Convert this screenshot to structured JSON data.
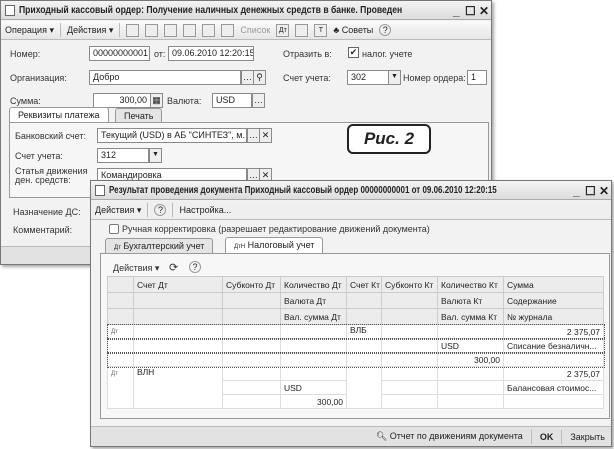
{
  "main": {
    "title": "Приходный кассовый ордер: Получение наличных денежных средств в банке. Проведен",
    "toolbar": {
      "operation": "Операция ▾",
      "actions": "Действия ▾",
      "list": "Список",
      "advice": "Советы"
    },
    "number_label": "Номер:",
    "number": "00000000001",
    "from_label": "от:",
    "date": "09.06.2010 12:20:15",
    "reflect_label": "Отразить в:",
    "reflect_checkbox": "налог. учете",
    "org_label": "Организация:",
    "org": "Добро",
    "account_label": "Счет учета:",
    "account": "302",
    "order_no_label": "Номер ордера:",
    "order_no": "1",
    "sum_label": "Сумма:",
    "sum": "300,00",
    "currency_label": "Валюта:",
    "currency": "USD",
    "tabs": [
      "Реквизиты платежа",
      "Печать"
    ],
    "bank_label": "Банковский счет:",
    "bank": "Текущий (USD) в АБ \"СИНТЕЗ\", м. >",
    "acc2_label": "Счет учета:",
    "acc2": "312",
    "flow_label": "Статья движения ден. средств:",
    "flow": "Командировка",
    "purpose_label": "Назначение ДС:",
    "comment_label": "Комментарий:"
  },
  "figure_label": "Рис. 2",
  "result": {
    "title": "Результат проведения документа Приходный кассовый ордер 00000000001 от 09.06.2010 12:20:15",
    "toolbar": {
      "actions": "Действия ▾",
      "settings": "Настройка..."
    },
    "manual_checkbox": "Ручная корректировка (разрешает редактирование движений документа)",
    "tabs": [
      "Бухгалтерский учет",
      "Налоговый учет"
    ],
    "inner_actions": "Действия ▾",
    "headers": [
      [
        "",
        "Счет Дт",
        "Субконто Дт",
        "Количество Дт",
        "Счет Кт",
        "Субконто Кт",
        "Количество Кт",
        "Сумма"
      ],
      [
        "",
        "",
        "",
        "Валюта Дт",
        "",
        "",
        "Валюта Кт",
        "Содержание"
      ],
      [
        "",
        "",
        "",
        "Вал. сумма Дт",
        "",
        "",
        "Вал. сумма Кт",
        "№ журнала"
      ]
    ],
    "rows": [
      {
        "dt": "",
        "kt": "ВЛБ",
        "sum": "2 375,07",
        "cur_dt": "",
        "cur_kt": "USD",
        "content": "Списание безналичн...",
        "val_dt": "",
        "val_kt": "300,00"
      },
      {
        "dt": "ВЛН",
        "kt": "",
        "sum": "2 375,07",
        "cur_dt": "USD",
        "cur_kt": "",
        "content": "Балансовая стоимос...",
        "val_dt": "300,00",
        "val_kt": ""
      }
    ],
    "footer": {
      "report": "Отчет по движениям документа",
      "ok": "OK",
      "close": "Закрыть"
    }
  }
}
